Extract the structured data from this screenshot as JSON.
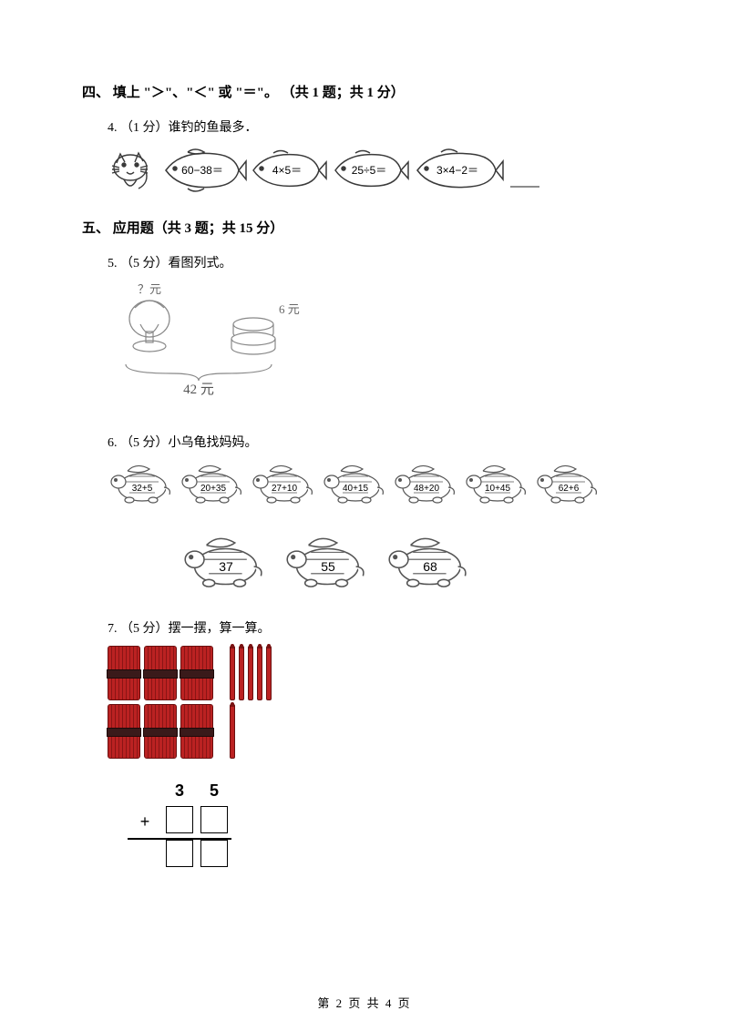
{
  "section4": {
    "title": "四、 填上 \"＞\"、\"＜\" 或 \"＝\"。 （共 1 题；共 1 分）",
    "q4_prompt": "4. （1 分）谁钓的鱼最多．",
    "fish_exprs": [
      "60−38＝",
      "4×5＝",
      "25÷5＝",
      "3×4−2＝"
    ],
    "blank_line_color": "#666666"
  },
  "section5": {
    "title": "五、 应用题（共 3 题；共 15 分）",
    "q5_prompt": "5. （5 分）看图列式。",
    "q5_diagram": {
      "total_label": "42 元",
      "right_label": "6 元",
      "left_label": "？元",
      "stroke": "#888888",
      "text_color": "#666666"
    },
    "q6_prompt": "6. （5 分）小乌龟找妈妈。",
    "q6_babies": [
      "32+5",
      "20+35",
      "27+10",
      "40+15",
      "48+20",
      "10+45",
      "62+6"
    ],
    "q6_moms": [
      "37",
      "55",
      "68"
    ],
    "q7_prompt": "7. （5 分）摆一摆，算一算。",
    "q7_sticks": {
      "row1": {
        "bundles": 3,
        "sticks": 5
      },
      "row2": {
        "bundles": 3,
        "sticks": 1
      },
      "bundle_color": "#bb2222"
    },
    "q7_calc": {
      "top_row": [
        "3",
        "5"
      ],
      "operator": "+"
    }
  },
  "footer": "第 2 页 共 4 页"
}
